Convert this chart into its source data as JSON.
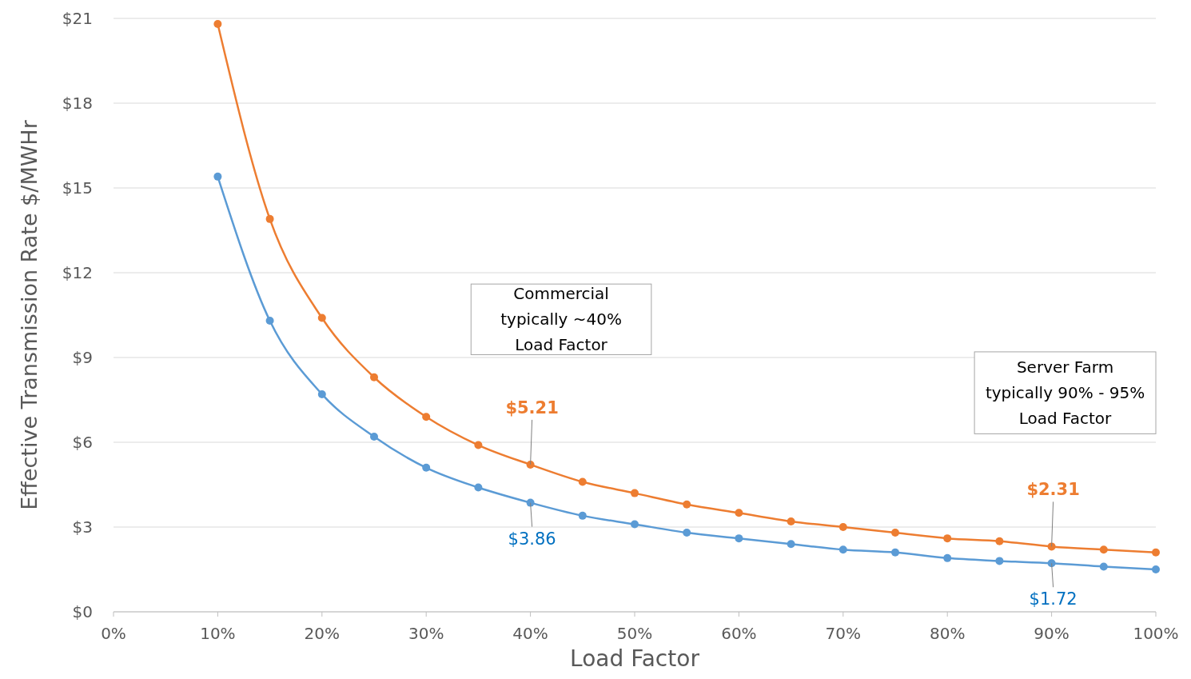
{
  "chart_data": {
    "type": "line",
    "xlabel": "Load Factor",
    "ylabel": "Effective  Transmission Rate $/MWHr",
    "x": [
      10,
      15,
      20,
      25,
      30,
      35,
      40,
      45,
      50,
      55,
      60,
      65,
      70,
      75,
      80,
      85,
      90,
      95,
      100
    ],
    "series": [
      {
        "color": "#ed7d31",
        "values": [
          20.8,
          13.9,
          10.4,
          8.3,
          6.9,
          5.9,
          5.21,
          4.6,
          4.2,
          3.8,
          3.5,
          3.2,
          3.0,
          2.8,
          2.6,
          2.5,
          2.31,
          2.2,
          2.1
        ],
        "value_labels": [
          null,
          null,
          null,
          null,
          null,
          null,
          "$5.21",
          null,
          null,
          null,
          null,
          null,
          null,
          null,
          null,
          null,
          "$2.31",
          null,
          null
        ]
      },
      {
        "color": "#5b9bd5",
        "values": [
          15.4,
          10.3,
          7.7,
          6.2,
          5.1,
          4.4,
          3.86,
          3.4,
          3.1,
          2.8,
          2.6,
          2.4,
          2.2,
          2.1,
          1.9,
          1.8,
          1.72,
          1.6,
          1.5
        ],
        "value_labels": [
          null,
          null,
          null,
          null,
          null,
          null,
          "$3.86",
          null,
          null,
          null,
          null,
          null,
          null,
          null,
          null,
          null,
          "$1.72",
          null,
          null
        ]
      }
    ],
    "xlim": [
      0,
      100
    ],
    "xticks": [
      {
        "value": 0,
        "label": "0%"
      },
      {
        "value": 10,
        "label": "10%"
      },
      {
        "value": 20,
        "label": "20%"
      },
      {
        "value": 30,
        "label": "30%"
      },
      {
        "value": 40,
        "label": "40%"
      },
      {
        "value": 50,
        "label": "50%"
      },
      {
        "value": 60,
        "label": "60%"
      },
      {
        "value": 70,
        "label": "70%"
      },
      {
        "value": 80,
        "label": "80%"
      },
      {
        "value": 90,
        "label": "90%"
      },
      {
        "value": 100,
        "label": "100%"
      }
    ],
    "ylim": [
      0,
      21
    ],
    "yticks": [
      {
        "value": 0,
        "label": "$0"
      },
      {
        "value": 3,
        "label": "$3"
      },
      {
        "value": 6,
        "label": "$6"
      },
      {
        "value": 9,
        "label": "$9"
      },
      {
        "value": 12,
        "label": "$12"
      },
      {
        "value": 15,
        "label": "$15"
      },
      {
        "value": 18,
        "label": "$18"
      },
      {
        "value": 21,
        "label": "$21"
      }
    ],
    "grid": "y",
    "marker": "circle",
    "line_style": "solid",
    "annotations": [
      "Commercial\ntypically ~40%\nLoad Factor",
      "Server Farm\ntypically 90% - 95%\nLoad Factor"
    ]
  }
}
